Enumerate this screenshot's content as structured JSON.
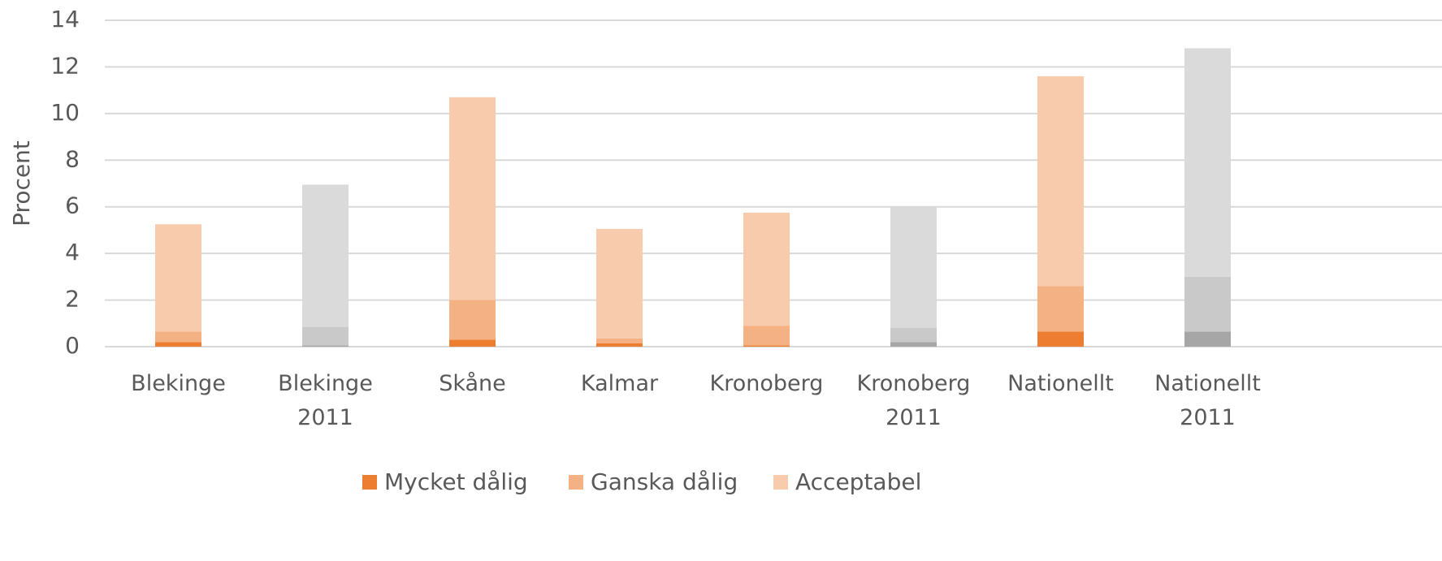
{
  "chart_data": {
    "type": "stacked_bar",
    "y_label": "Procent",
    "categories": [
      "Blekinge",
      "Blekinge 2011",
      "Skåne",
      "Kalmar",
      "Kronoberg",
      "Kronoberg 2011",
      "Nationellt",
      "Nationellt 2011"
    ],
    "series": [
      {
        "name": "Mycket dålig",
        "color": "#ed7d31",
        "point_colors": [
          "#ed7d31",
          "#a6a6a6",
          "#ed7d31",
          "#ed7d31",
          "#ed7d31",
          "#a6a6a6",
          "#ed7d31",
          "#a6a6a6"
        ],
        "values": [
          0.2,
          0.05,
          0.3,
          0.15,
          0.05,
          0.2,
          0.65,
          0.65
        ]
      },
      {
        "name": "Ganska dålig",
        "color": "#f4b183",
        "point_colors": [
          "#f4b183",
          "#c9c9c9",
          "#f4b183",
          "#f4b183",
          "#f4b183",
          "#c9c9c9",
          "#f4b183",
          "#c9c9c9"
        ],
        "values": [
          0.45,
          0.8,
          1.7,
          0.2,
          0.85,
          0.6,
          1.95,
          2.35
        ]
      },
      {
        "name": "Acceptabel",
        "color": "#f8cbad",
        "point_colors": [
          "#f8cbad",
          "#dadada",
          "#f8cbad",
          "#f8cbad",
          "#f8cbad",
          "#dadada",
          "#f8cbad",
          "#dadada"
        ],
        "values": [
          4.6,
          6.1,
          8.7,
          4.7,
          4.85,
          5.2,
          9.0,
          9.8
        ]
      }
    ],
    "ylim": [
      0,
      14
    ],
    "yticks": [
      0,
      2,
      4,
      6,
      8,
      10,
      12,
      14
    ],
    "grid": true,
    "legend": "bottom"
  }
}
